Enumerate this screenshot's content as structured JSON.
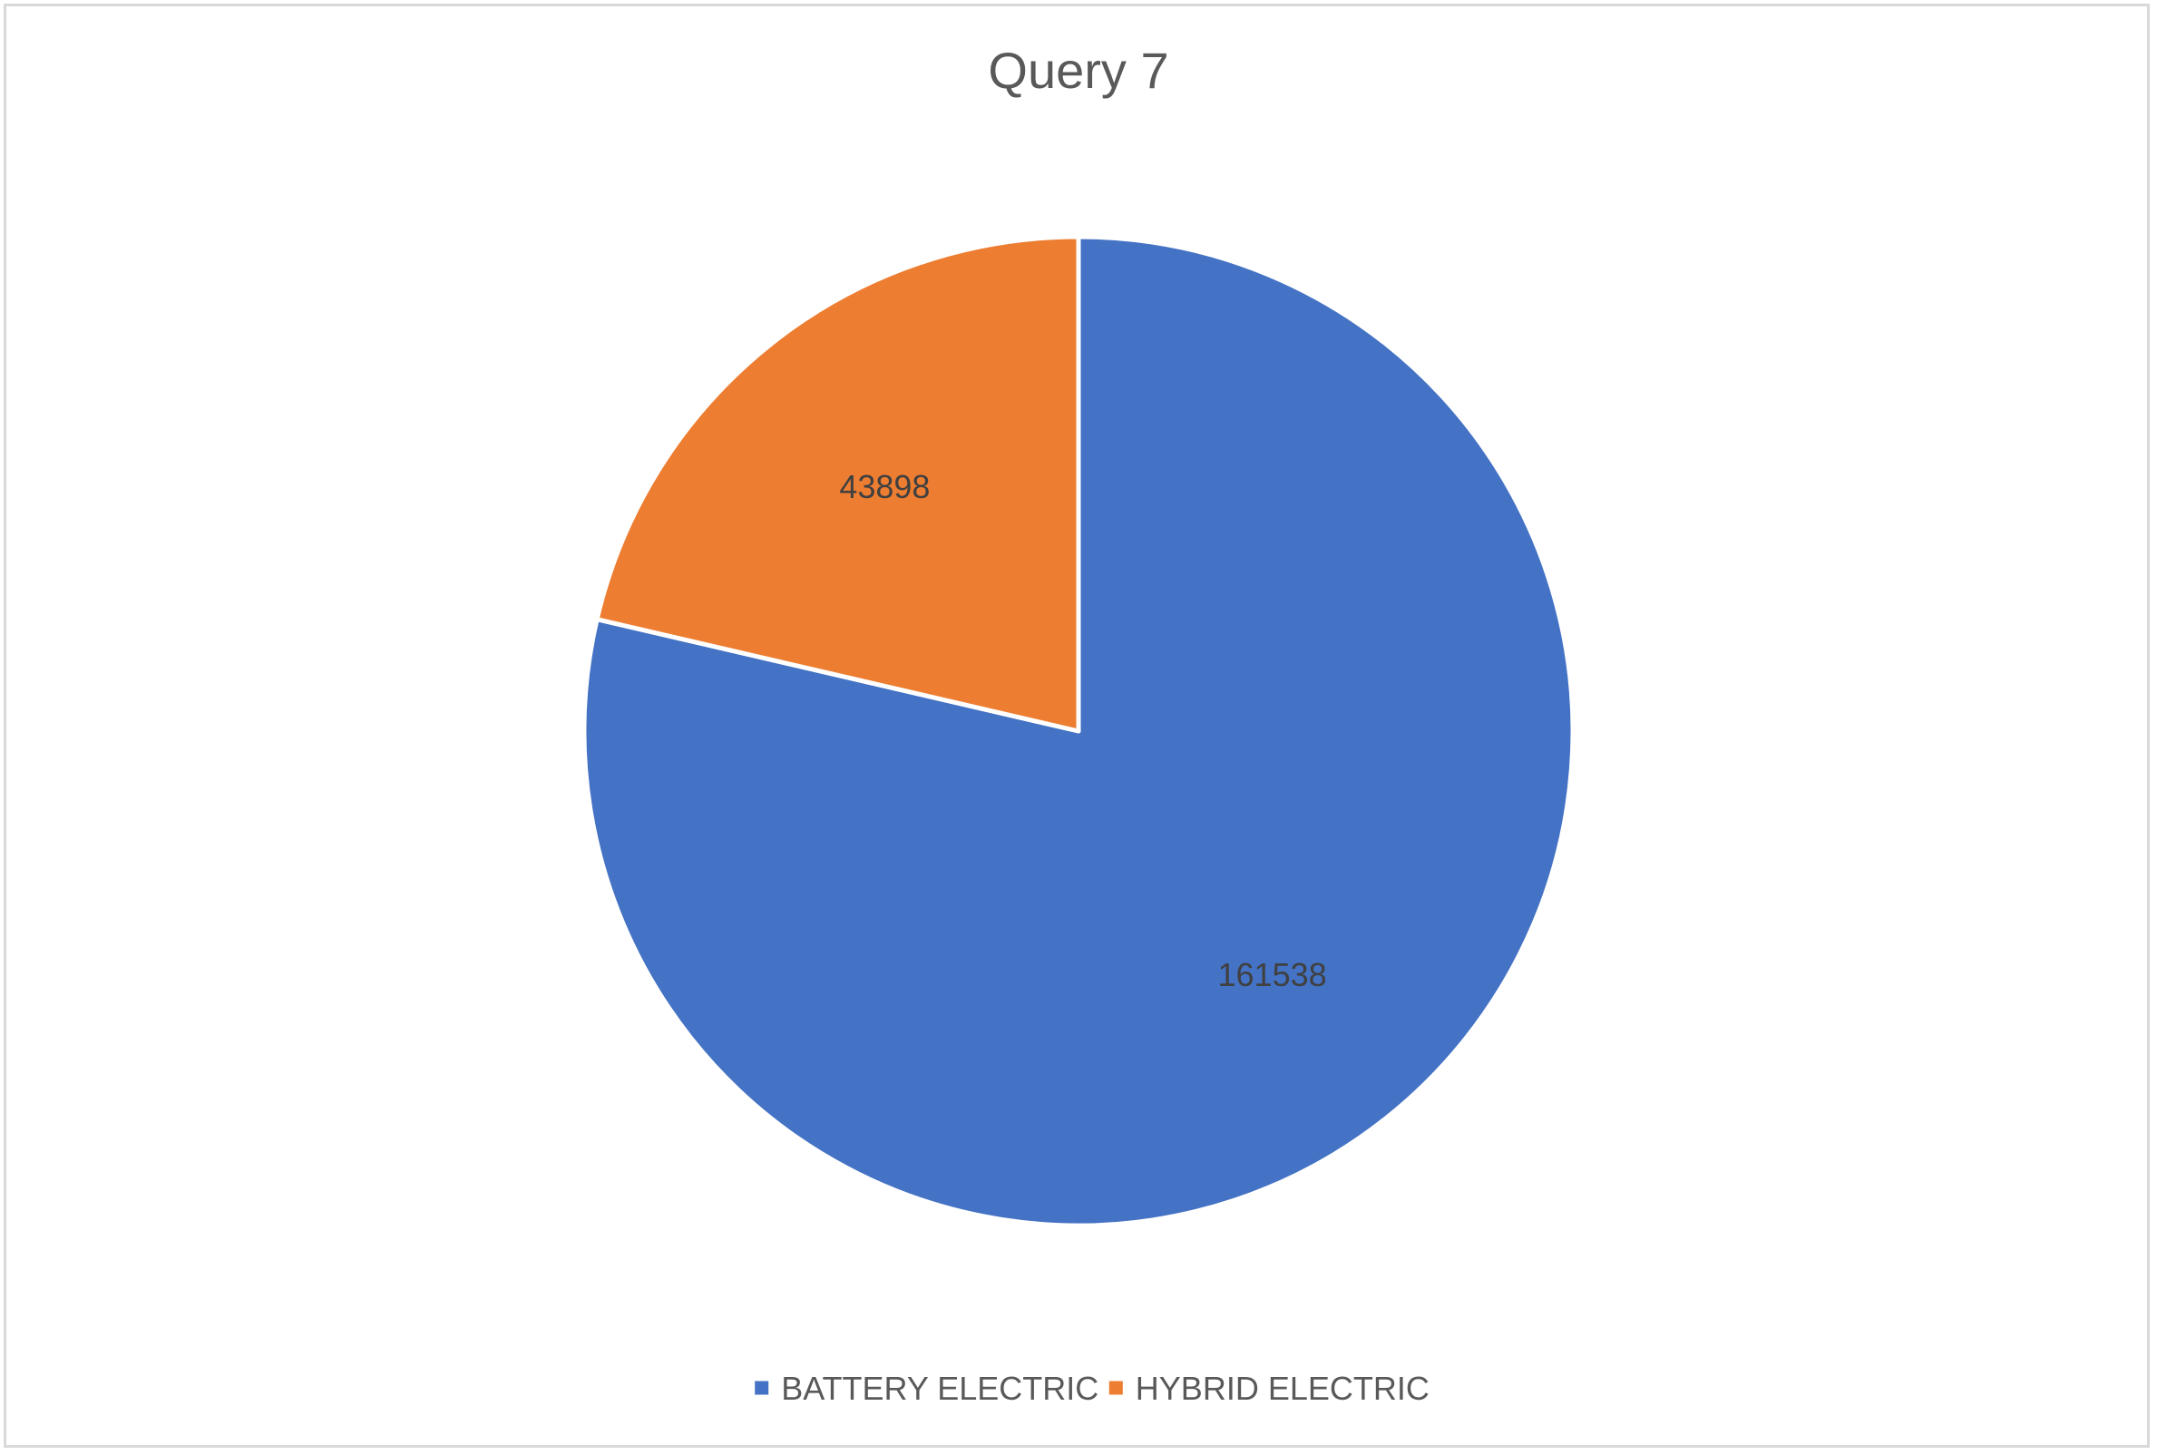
{
  "chart_data": {
    "type": "pie",
    "title": "Query 7",
    "categories": [
      "BATTERY ELECTRIC",
      "HYBRID ELECTRIC"
    ],
    "values": [
      161538,
      43898
    ],
    "colors": [
      "#4472C4",
      "#ED7D31"
    ],
    "start_angle_deg": 0,
    "direction": "clockwise",
    "legend_position": "bottom",
    "data_labels": [
      "161538",
      "43898"
    ]
  }
}
